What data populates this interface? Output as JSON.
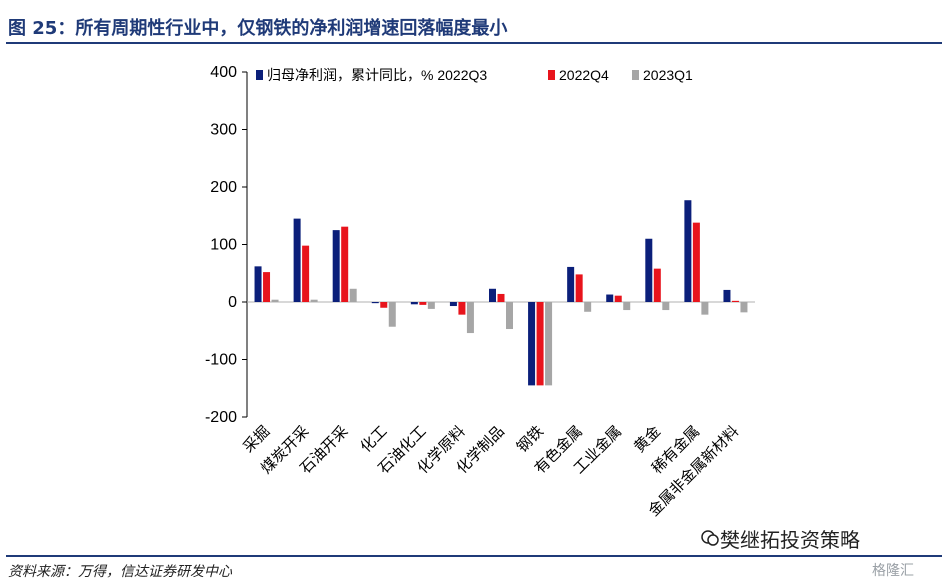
{
  "figure": {
    "title": "图 25：所有周期性行业中，仅钢铁的净利润增速回落幅度最小",
    "source": "资料来源：万得，信达证券研发中心",
    "watermark": "樊继拓投资策略",
    "corner_logo": "格隆汇"
  },
  "colors": {
    "title": "#1f3a78",
    "series_2022Q3": "#0b1f7a",
    "series_2022Q4": "#e8141c",
    "series_2023Q1": "#a6a6a6"
  },
  "chart_data": {
    "type": "bar",
    "categories": [
      "采掘",
      "煤炭开采",
      "石油开采",
      "化工",
      "石油化工",
      "化学原料",
      "化学制品",
      "钢铁",
      "有色金属",
      "工业金属",
      "黄金",
      "稀有金属",
      "金属非金属新材料"
    ],
    "series": [
      {
        "name": "归母净利润，累计同比，% 2022Q3",
        "values": [
          62,
          145,
          125,
          -2,
          -4,
          -7,
          23,
          -145,
          61,
          13,
          110,
          177,
          21
        ]
      },
      {
        "name": "2022Q4",
        "values": [
          52,
          98,
          131,
          -10,
          -5,
          -22,
          14,
          -145,
          48,
          11,
          58,
          138,
          2
        ]
      },
      {
        "name": "2023Q1",
        "values": [
          4,
          4,
          23,
          -43,
          -12,
          -54,
          -47,
          -145,
          -17,
          -14,
          -14,
          -22,
          -18
        ]
      }
    ],
    "yticks": [
      400,
      300,
      200,
      100,
      0,
      -100,
      -200
    ],
    "ylim": [
      -200,
      400
    ],
    "legend_position": "top",
    "grid": false
  }
}
